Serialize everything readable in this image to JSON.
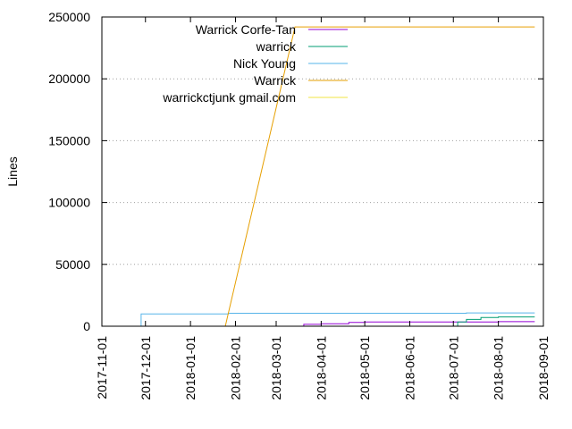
{
  "chart_data": {
    "type": "line",
    "title": "",
    "xlabel": "",
    "ylabel": "Lines",
    "ylim": [
      0,
      250000
    ],
    "yticks": [
      0,
      50000,
      100000,
      150000,
      200000,
      250000
    ],
    "xlim": [
      "2017-11-01",
      "2018-09-01"
    ],
    "xticks": [
      "2017-11-01",
      "2017-12-01",
      "2018-01-01",
      "2018-02-01",
      "2018-03-01",
      "2018-04-01",
      "2018-05-01",
      "2018-06-01",
      "2018-07-01",
      "2018-08-01",
      "2018-09-01"
    ],
    "grid": "horizontal-dotted",
    "legend_position": "top-left",
    "series": [
      {
        "name": "Warrick Corfe-Tan",
        "color": "#9400d3",
        "step": true,
        "points": [
          [
            "2018-03-19",
            0
          ],
          [
            "2018-03-20",
            1500
          ],
          [
            "2018-04-01",
            2000
          ],
          [
            "2018-04-20",
            3000
          ],
          [
            "2018-05-01",
            3500
          ],
          [
            "2018-07-01",
            3500
          ],
          [
            "2018-08-01",
            3700
          ],
          [
            "2018-08-26",
            3700
          ]
        ]
      },
      {
        "name": "warrick",
        "color": "#009e73",
        "step": true,
        "points": [
          [
            "2018-07-01",
            0
          ],
          [
            "2018-07-04",
            3500
          ],
          [
            "2018-07-10",
            5500
          ],
          [
            "2018-07-20",
            7000
          ],
          [
            "2018-08-01",
            7500
          ],
          [
            "2018-08-26",
            7500
          ]
        ]
      },
      {
        "name": "Nick Young",
        "color": "#56b4e9",
        "step": true,
        "points": [
          [
            "2017-11-27",
            0
          ],
          [
            "2017-11-28",
            10000
          ],
          [
            "2018-01-26",
            10000
          ],
          [
            "2018-01-27",
            10500
          ],
          [
            "2018-07-01",
            10500
          ],
          [
            "2018-07-10",
            10800
          ],
          [
            "2018-08-26",
            10800
          ]
        ]
      },
      {
        "name": "Warrick",
        "color": "#e69f00",
        "step": false,
        "points": [
          [
            "2018-01-25",
            0
          ],
          [
            "2018-03-14",
            242000
          ],
          [
            "2018-08-26",
            242000
          ]
        ]
      },
      {
        "name": "warrickctjunk gmail.com",
        "color": "#f0e442",
        "step": false,
        "points": []
      }
    ]
  }
}
